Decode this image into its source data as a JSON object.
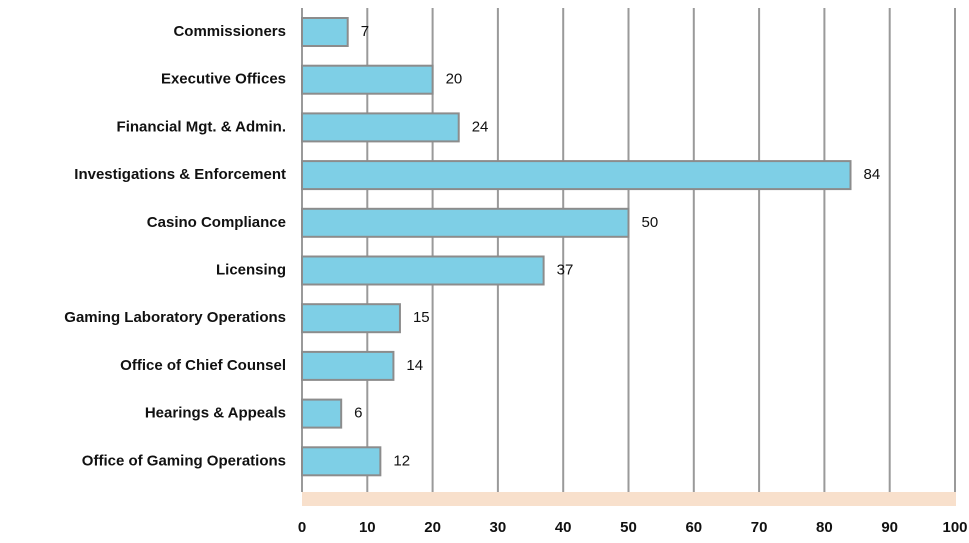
{
  "chart_data": {
    "type": "bar",
    "orientation": "horizontal",
    "categories": [
      "Commissioners",
      "Executive Offices",
      "Financial Mgt. & Admin.",
      "Investigations & Enforcement",
      "Casino Compliance",
      "Licensing",
      "Gaming Laboratory Operations",
      "Office of Chief Counsel",
      "Hearings & Appeals",
      "Office of Gaming Operations"
    ],
    "values": [
      7,
      20,
      24,
      84,
      50,
      37,
      15,
      14,
      6,
      12
    ],
    "color": "#7ecfe6",
    "xlim": [
      0,
      100
    ],
    "xticks": [
      0,
      10,
      20,
      30,
      40,
      50,
      60,
      70,
      80,
      90,
      100
    ],
    "grid": true
  }
}
